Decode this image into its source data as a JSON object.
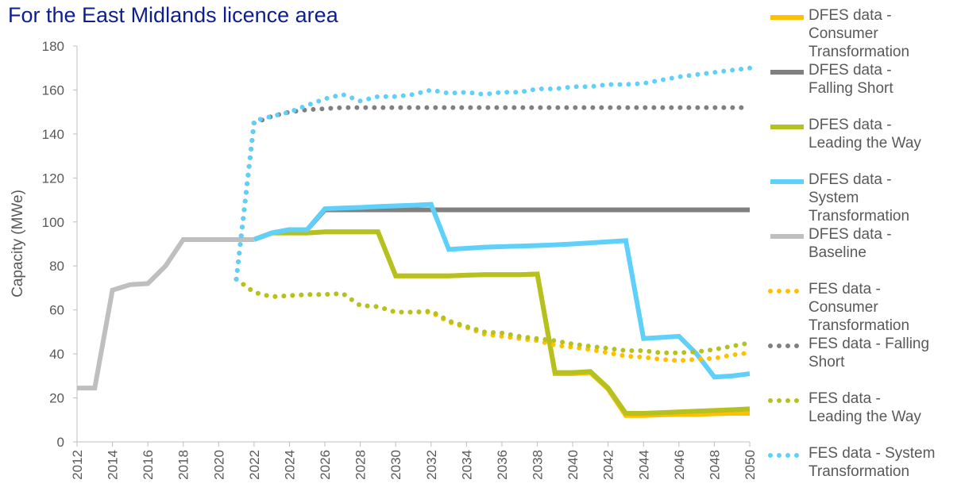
{
  "chart_data": {
    "type": "line",
    "title": "For the East Midlands licence area",
    "y_label": "Capacity (MWe)",
    "x": [
      2012,
      2013,
      2014,
      2015,
      2016,
      2017,
      2018,
      2019,
      2020,
      2021,
      2022,
      2023,
      2024,
      2025,
      2026,
      2027,
      2028,
      2029,
      2030,
      2031,
      2032,
      2033,
      2034,
      2035,
      2036,
      2037,
      2038,
      2039,
      2040,
      2041,
      2042,
      2043,
      2044,
      2045,
      2046,
      2047,
      2048,
      2049,
      2050
    ],
    "xlim": [
      2012,
      2050
    ],
    "xticks": [
      2012,
      2014,
      2016,
      2018,
      2020,
      2022,
      2024,
      2026,
      2028,
      2030,
      2032,
      2034,
      2036,
      2038,
      2040,
      2042,
      2044,
      2046,
      2048,
      2050
    ],
    "ylim": [
      0,
      180
    ],
    "yticks": [
      0,
      20,
      40,
      60,
      80,
      100,
      120,
      140,
      160,
      180
    ],
    "grid": false,
    "legend": "right",
    "series": [
      {
        "name": "DFES data - Consumer Transformation",
        "color": "#ffc000",
        "style": "solid",
        "values": [
          null,
          null,
          null,
          null,
          null,
          null,
          null,
          null,
          null,
          null,
          92,
          95,
          95,
          95,
          95.5,
          95.5,
          95.5,
          95.5,
          75.5,
          75.5,
          75.5,
          75.5,
          75.8,
          76,
          76,
          76,
          76.3,
          31,
          31,
          31.5,
          24,
          12,
          12,
          12.3,
          12.5,
          12.5,
          12.8,
          13,
          13
        ]
      },
      {
        "name": "DFES data - Falling Short",
        "color": "#808080",
        "style": "solid",
        "values": [
          null,
          null,
          null,
          null,
          null,
          null,
          null,
          null,
          null,
          null,
          92,
          95,
          96.5,
          96.5,
          105.5,
          105.5,
          105.5,
          105.5,
          105.5,
          105.5,
          105.5,
          105.5,
          105.5,
          105.5,
          105.5,
          105.5,
          105.5,
          105.5,
          105.5,
          105.5,
          105.5,
          105.5,
          105.5,
          105.5,
          105.5,
          105.5,
          105.5,
          105.5,
          105.5
        ]
      },
      {
        "name": "DFES data - Leading the Way",
        "color": "#b5c11e",
        "style": "solid",
        "values": [
          null,
          null,
          null,
          null,
          null,
          null,
          null,
          null,
          null,
          null,
          92,
          95,
          95,
          95,
          95.5,
          95.5,
          95.5,
          95.5,
          75.5,
          75.5,
          75.5,
          75.5,
          75.8,
          76,
          76,
          76,
          76.3,
          31.5,
          31.5,
          32,
          24.5,
          13,
          13,
          13.3,
          13.6,
          14,
          14.3,
          14.6,
          15
        ]
      },
      {
        "name": "DFES data - System Transformation",
        "color": "#5ed0fa",
        "style": "solid",
        "values": [
          null,
          null,
          null,
          null,
          null,
          null,
          null,
          null,
          null,
          null,
          92,
          95,
          96.5,
          96.5,
          106,
          106.3,
          106.6,
          107,
          107.3,
          107.6,
          108,
          87.5,
          88,
          88.5,
          88.8,
          89,
          89.3,
          89.6,
          90,
          90.5,
          91,
          91.5,
          47,
          47.5,
          48,
          40,
          29.5,
          30,
          31
        ]
      },
      {
        "name": "DFES data - Baseline",
        "color": "#bfbfbf",
        "style": "solid",
        "values": [
          24.5,
          24.5,
          69,
          71.5,
          72,
          80,
          92,
          92,
          92,
          92,
          92,
          null,
          null,
          null,
          null,
          null,
          null,
          null,
          null,
          null,
          null,
          null,
          null,
          null,
          null,
          null,
          null,
          null,
          null,
          null,
          null,
          null,
          null,
          null,
          null,
          null,
          null,
          null,
          null
        ]
      },
      {
        "name": "FES data - Consumer Transformation",
        "color": "#ffc000",
        "style": "dotted",
        "values": [
          null,
          null,
          null,
          null,
          null,
          null,
          null,
          null,
          null,
          74,
          68,
          66,
          66.5,
          67,
          67,
          67.5,
          62,
          61.5,
          59,
          59,
          59,
          54.5,
          52,
          49,
          48,
          47,
          46,
          44,
          43,
          42,
          40.5,
          39,
          38.5,
          37.5,
          37,
          37.5,
          38,
          39.5,
          40.5
        ]
      },
      {
        "name": "FES data - Falling Short",
        "color": "#808080",
        "style": "dotted",
        "values": [
          null,
          null,
          null,
          null,
          null,
          null,
          null,
          null,
          null,
          74,
          145,
          148,
          150,
          151,
          151.5,
          152,
          152,
          152,
          152,
          152,
          152,
          152,
          152,
          152,
          152,
          152,
          152,
          152,
          152,
          152,
          152,
          152,
          152,
          152,
          152,
          152,
          152,
          152,
          152
        ]
      },
      {
        "name": "FES data - Leading the Way",
        "color": "#b5c11e",
        "style": "dotted",
        "values": [
          null,
          null,
          null,
          null,
          null,
          null,
          null,
          null,
          null,
          74,
          68,
          66,
          66.5,
          67,
          67,
          67.5,
          62,
          61.5,
          59,
          59,
          59.5,
          55,
          52.5,
          50,
          49.5,
          48,
          47,
          46,
          44.5,
          43.5,
          42.5,
          41.5,
          41.5,
          40.5,
          40.5,
          41,
          42,
          43.5,
          45
        ]
      },
      {
        "name": "FES data - System Transformation",
        "color": "#5ed0fa",
        "style": "dotted",
        "values": [
          null,
          null,
          null,
          null,
          null,
          null,
          null,
          null,
          null,
          74,
          146,
          148,
          150,
          153,
          156,
          158,
          155,
          157,
          157,
          158,
          160,
          158.5,
          159,
          158,
          159,
          159,
          160.5,
          160.5,
          161.5,
          161.5,
          162.5,
          162.5,
          163,
          164.5,
          166,
          167,
          168,
          169,
          170
        ]
      }
    ]
  }
}
